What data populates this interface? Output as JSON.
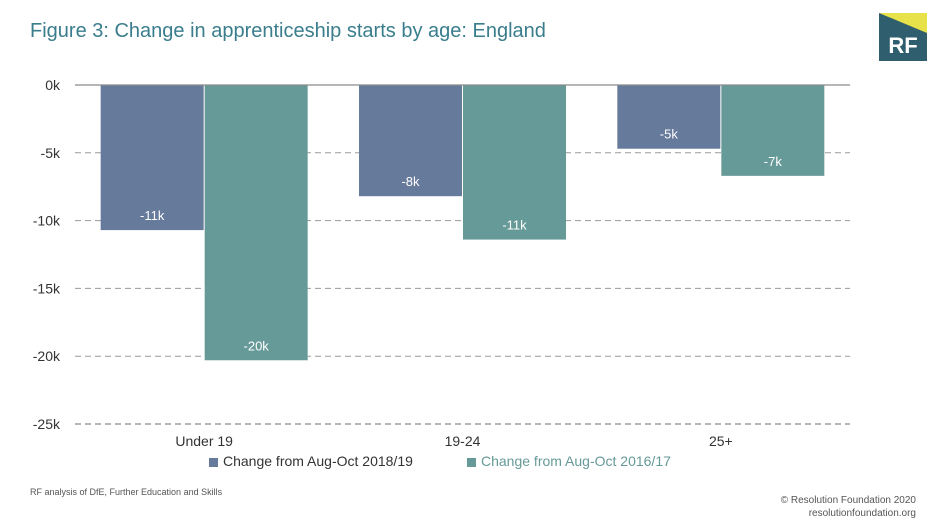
{
  "title": "Figure 3: Change in apprenticeship starts by age: England",
  "logo": {
    "text": "RF"
  },
  "chart_data": {
    "type": "bar",
    "categories": [
      "Under 19",
      "19-24",
      "25+"
    ],
    "series": [
      {
        "name": "Change from Aug-Oct 2018/19",
        "values": [
          -10.7,
          -8.2,
          -4.7
        ],
        "labels": [
          "-11k",
          "-8k",
          "-5k"
        ],
        "color": "#667a9b"
      },
      {
        "name": "Change from Aug-Oct 2016/17",
        "values": [
          -20.3,
          -11.4,
          -6.7
        ],
        "labels": [
          "-20k",
          "-11k",
          "-7k"
        ],
        "color": "#669a98"
      }
    ],
    "ylim": [
      -25,
      0
    ],
    "yticks": [
      0,
      -5,
      -10,
      -15,
      -20,
      -25
    ],
    "ytick_labels": [
      "0k",
      "-5k",
      "-10k",
      "-15k",
      "-20k",
      "-25k"
    ],
    "grid": true,
    "legend_position": "bottom"
  },
  "source": "RF analysis of DfE, Further Education and Skills",
  "copyright": {
    "line1": "© Resolution Foundation 2020",
    "line2": "resolutionfoundation.org"
  }
}
